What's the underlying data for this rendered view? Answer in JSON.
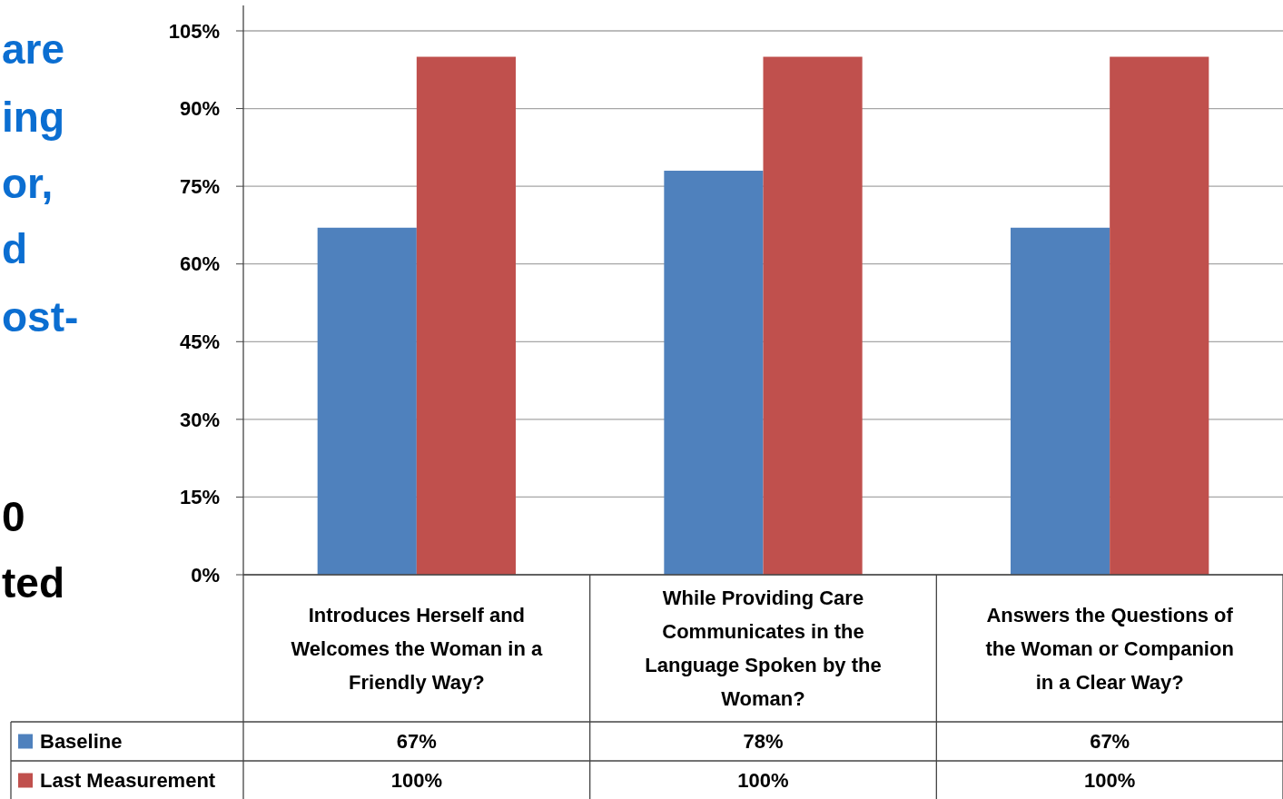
{
  "chart_data": {
    "type": "bar",
    "categories": [
      "Introduces Herself and Welcomes the Woman in a Friendly Way?",
      "While Providing Care Communicates in the Language Spoken by the Woman?",
      "Answers the Questions of the Woman or Companion in a Clear Way?"
    ],
    "series": [
      {
        "name": "Baseline",
        "color": "#4f81bd",
        "values": [
          67,
          78,
          67
        ],
        "value_labels": [
          "67%",
          "78%",
          "67%"
        ]
      },
      {
        "name": "Last Measurement",
        "color": "#c0504d",
        "values": [
          100,
          100,
          100
        ],
        "value_labels": [
          "100%",
          "100%",
          "100%"
        ]
      }
    ],
    "ylim": [
      0,
      105
    ],
    "yticks": [
      {
        "value": 0,
        "label": "0%"
      },
      {
        "value": 15,
        "label": "15%"
      },
      {
        "value": 30,
        "label": "30%"
      },
      {
        "value": 45,
        "label": "45%"
      },
      {
        "value": 60,
        "label": "60%"
      },
      {
        "value": 75,
        "label": "75%"
      },
      {
        "value": 90,
        "label": "90%"
      },
      {
        "value": 105,
        "label": "105%"
      }
    ],
    "grid": "y",
    "legend": "bottom",
    "annotations": [
      "are",
      "ing",
      "or,",
      "d",
      "ost-",
      "0",
      "ted"
    ]
  }
}
